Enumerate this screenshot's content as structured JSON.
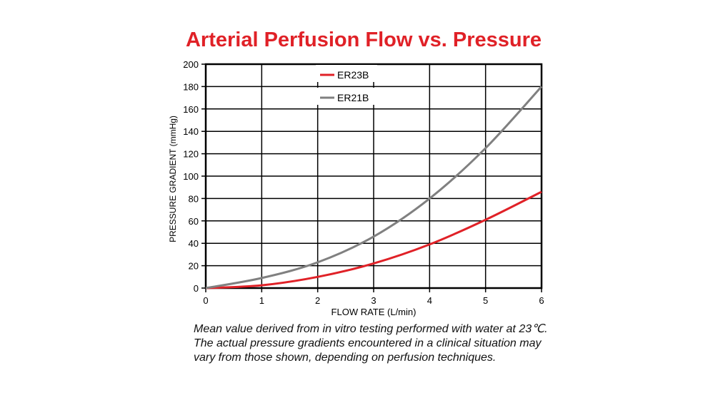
{
  "chart_data": {
    "type": "line",
    "title": "Arterial Perfusion Flow vs. Pressure",
    "xlabel": "FLOW RATE (L/min)",
    "ylabel": "PRESSURE GRADIENT (mmHg)",
    "xlim": [
      0,
      6
    ],
    "ylim": [
      0,
      200
    ],
    "xticks": [
      0,
      1,
      2,
      3,
      4,
      5,
      6
    ],
    "yticks": [
      0,
      20,
      40,
      60,
      80,
      100,
      120,
      140,
      160,
      180,
      200
    ],
    "grid": true,
    "legend_position": "top-center",
    "x": [
      0,
      1,
      2,
      3,
      4,
      5,
      6
    ],
    "series": [
      {
        "name": "ER23B",
        "color": "#e02127",
        "values": [
          0,
          2.5,
          10,
          22,
          39,
          61,
          86
        ]
      },
      {
        "name": "ER21B",
        "color": "#808080",
        "values": [
          0,
          9,
          23,
          46,
          80,
          125,
          180
        ]
      }
    ]
  },
  "caption": "Mean value derived from in vitro testing performed with water at 23℃. The actual pressure gradients encountered in a clinical situation may vary from those shown, depending on perfusion techniques."
}
